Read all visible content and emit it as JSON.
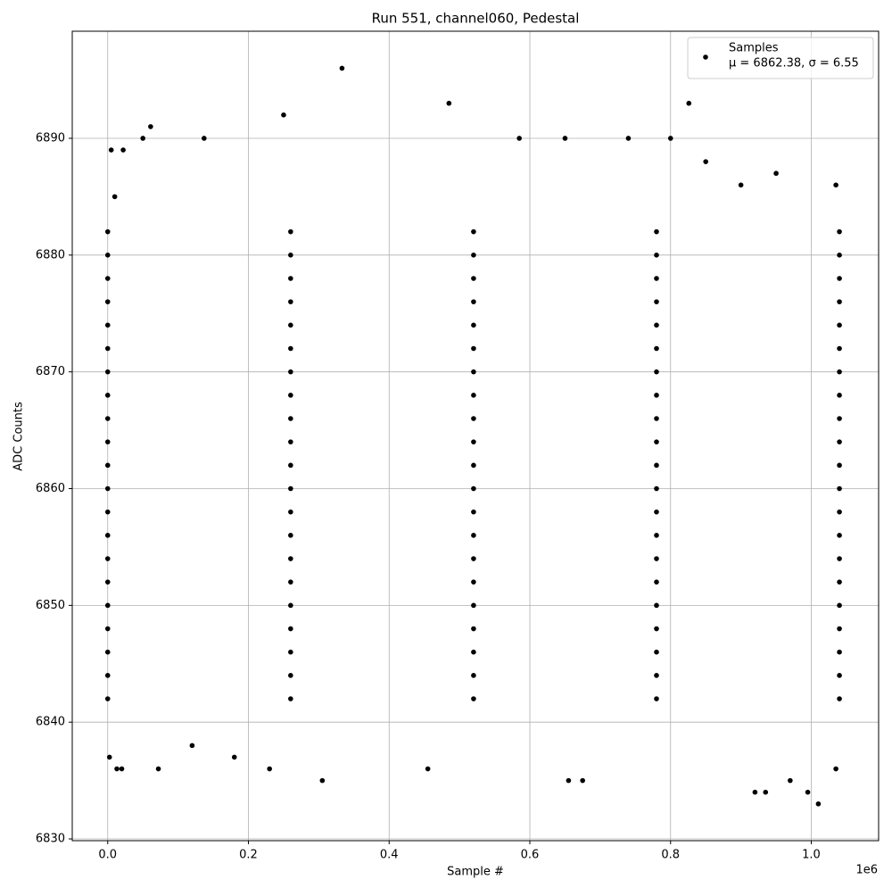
{
  "chart_data": {
    "type": "scatter",
    "title": "Run 551, channel060, Pedestal",
    "x_label": "Sample #",
    "y_label": "ADC Counts",
    "x_offset_label": "1e6",
    "legend_loc": "upper right",
    "legend_note": "μ = 6862.38, σ = 6.55",
    "grid": true,
    "xlim": [
      -0.0504,
      1.0957
    ],
    "ylim": [
      6829.85,
      6899.17
    ],
    "xticks": [
      {
        "value": 0,
        "label": "0.0"
      },
      {
        "value": 0.2,
        "label": "0.2"
      },
      {
        "value": 0.4,
        "label": "0.4"
      },
      {
        "value": 0.6,
        "label": "0.6"
      },
      {
        "value": 0.8,
        "label": "0.8"
      },
      {
        "value": 1,
        "label": "1.0"
      }
    ],
    "yticks": [
      6830,
      6840,
      6850,
      6860,
      6870,
      6880,
      6890
    ],
    "series": [
      {
        "name": "Samples",
        "color": "#000000",
        "x": [
          0.0025,
          0.005,
          0.013,
          0.02,
          0.022,
          0.05,
          0.061,
          0.072,
          0.137,
          0.23,
          0.25,
          0.305,
          0.333,
          0.485,
          0.455,
          0.585,
          0.65,
          0.655,
          0.675,
          0.74,
          0.8,
          0.826,
          0.92,
          0.935,
          0.97,
          0.995,
          1.01,
          1.035,
          0.95,
          0.12,
          0.18,
          0.85,
          0.9,
          0.01,
          1.035,
          0.0,
          0.26,
          0.52,
          0.78,
          1.04,
          0.0,
          0.26,
          0.52,
          0.78,
          1.04,
          0.0,
          0.26,
          0.52,
          0.78,
          1.04,
          0.0,
          0.26,
          0.52,
          0.78,
          1.04,
          0.0,
          0.26,
          0.52,
          0.78,
          1.04,
          0.0,
          0.26,
          0.52,
          0.78,
          1.04,
          0.0,
          0.26,
          0.52,
          0.78,
          1.04,
          0.0,
          0.26,
          0.52,
          0.78,
          1.04,
          0.0,
          0.26,
          0.52,
          0.78,
          1.04,
          0.0,
          0.26,
          0.52,
          0.78,
          1.04,
          0.0,
          0.26,
          0.52,
          0.78,
          1.04,
          0.0,
          0.26,
          0.52,
          0.78,
          1.04,
          0.0,
          0.26,
          0.52,
          0.78,
          1.04,
          0.0,
          0.26,
          0.52,
          0.78,
          1.04,
          0.0,
          0.26,
          0.52,
          0.78,
          1.04,
          0.0,
          0.26,
          0.52,
          0.78,
          1.04,
          0.0,
          0.26,
          0.52,
          0.78,
          1.04,
          0.0,
          0.26,
          0.52,
          0.78,
          1.04,
          0.0,
          0.26,
          0.52,
          0.78,
          1.04,
          0.0,
          0.26,
          0.52,
          0.78,
          1.04,
          0.0,
          0.26,
          0.52,
          0.78,
          1.04
        ],
        "values": [
          6837,
          6889,
          6836,
          6836,
          6889,
          6890,
          6891,
          6836,
          6890,
          6836,
          6892,
          6835,
          6896,
          6893,
          6836,
          6890,
          6890,
          6835,
          6835,
          6890,
          6890,
          6893,
          6834,
          6834,
          6835,
          6834,
          6833,
          6886,
          6887,
          6838,
          6837,
          6888,
          6886,
          6885,
          6836,
          6842,
          6842,
          6842,
          6842,
          6842,
          6844,
          6844,
          6844,
          6844,
          6844,
          6846,
          6846,
          6846,
          6846,
          6846,
          6848,
          6848,
          6848,
          6848,
          6848,
          6850,
          6850,
          6850,
          6850,
          6850,
          6852,
          6852,
          6852,
          6852,
          6852,
          6854,
          6854,
          6854,
          6854,
          6854,
          6856,
          6856,
          6856,
          6856,
          6856,
          6858,
          6858,
          6858,
          6858,
          6858,
          6860,
          6860,
          6860,
          6860,
          6860,
          6862,
          6862,
          6862,
          6862,
          6862,
          6864,
          6864,
          6864,
          6864,
          6864,
          6866,
          6866,
          6866,
          6866,
          6866,
          6868,
          6868,
          6868,
          6868,
          6868,
          6870,
          6870,
          6870,
          6870,
          6870,
          6872,
          6872,
          6872,
          6872,
          6872,
          6874,
          6874,
          6874,
          6874,
          6874,
          6876,
          6876,
          6876,
          6876,
          6876,
          6878,
          6878,
          6878,
          6878,
          6878,
          6880,
          6880,
          6880,
          6880,
          6880,
          6882,
          6882,
          6882,
          6882,
          6882
        ]
      }
    ]
  }
}
